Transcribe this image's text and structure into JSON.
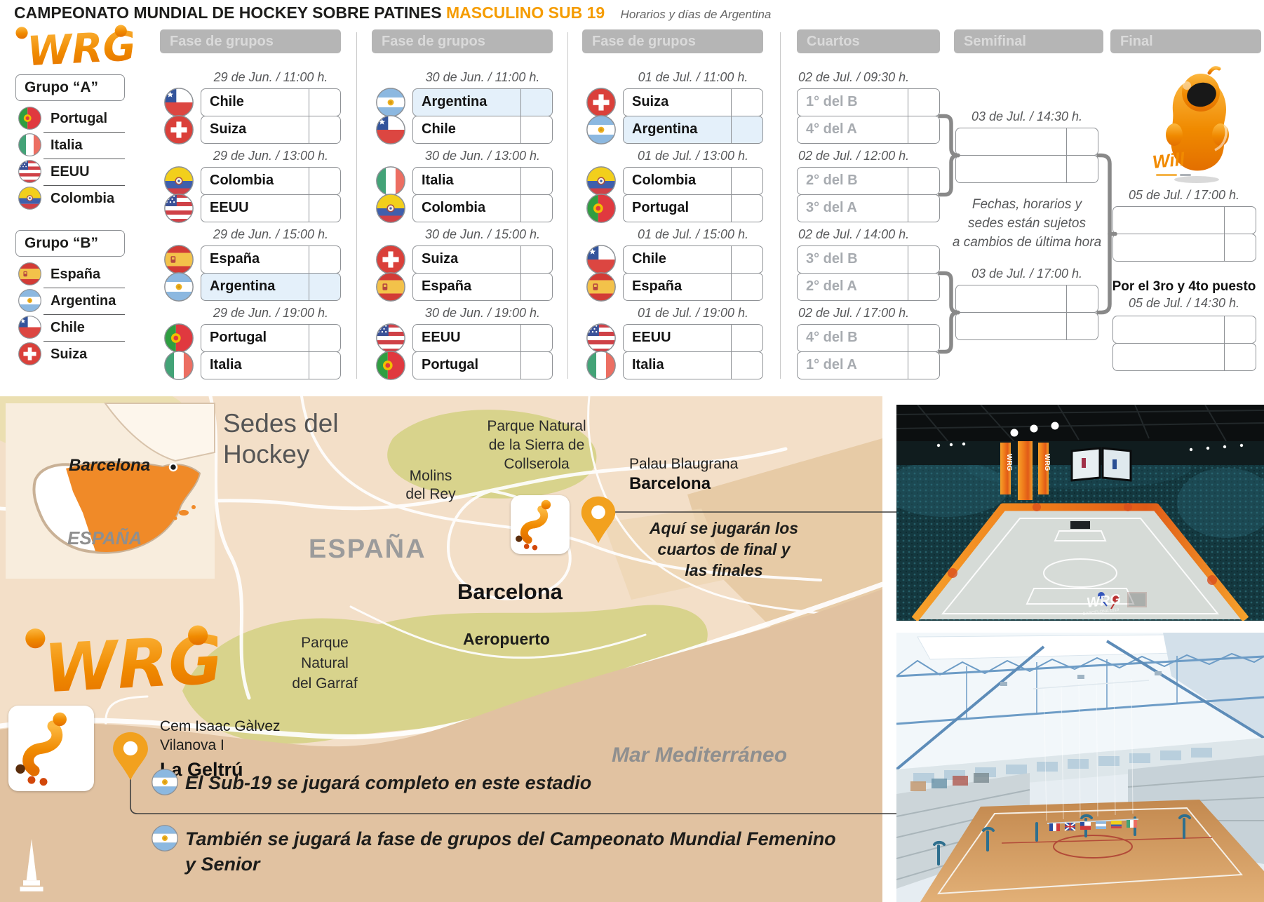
{
  "header": {
    "title": "CAMPEONATO MUNDIAL DE HOCKEY SOBRE PATINES",
    "title_highlight": "MASCULINO SUB 19",
    "subtitle": "Horarios y días de Argentina",
    "logo": "WRG"
  },
  "colors": {
    "accent": "#F59C00",
    "header_bar": "#b5b5b5",
    "highlight_row": "#e4f0fa",
    "bracket_line": "#898989",
    "map_land": "#f3dfc8",
    "map_sea": "#e1c2a1",
    "map_park": "#d8d38c",
    "pin": "#F2A11E",
    "spain_orange": "#F08A28"
  },
  "groups": [
    {
      "label": "Grupo “A”",
      "teams": [
        {
          "name": "Portugal",
          "flag": "portugal"
        },
        {
          "name": "Italia",
          "flag": "italia"
        },
        {
          "name": "EEUU",
          "flag": "eeuu"
        },
        {
          "name": "Colombia",
          "flag": "colombia"
        }
      ]
    },
    {
      "label": "Grupo “B”",
      "teams": [
        {
          "name": "España",
          "flag": "espana"
        },
        {
          "name": "Argentina",
          "flag": "argentina"
        },
        {
          "name": "Chile",
          "flag": "chile"
        },
        {
          "name": "Suiza",
          "flag": "suiza"
        }
      ]
    }
  ],
  "group_stage": {
    "columns": [
      {
        "header": "Fase de grupos",
        "matches": [
          {
            "datetime": "29 de Jun. / 11:00 h.",
            "teams": [
              {
                "name": "Chile",
                "flag": "chile"
              },
              {
                "name": "Suiza",
                "flag": "suiza"
              }
            ]
          },
          {
            "datetime": "29 de Jun. / 13:00 h.",
            "teams": [
              {
                "name": "Colombia",
                "flag": "colombia"
              },
              {
                "name": "EEUU",
                "flag": "eeuu"
              }
            ]
          },
          {
            "datetime": "29 de Jun. / 15:00 h.",
            "teams": [
              {
                "name": "España",
                "flag": "espana"
              },
              {
                "name": "Argentina",
                "flag": "argentina",
                "highlight": true
              }
            ]
          },
          {
            "datetime": "29 de Jun. / 19:00 h.",
            "teams": [
              {
                "name": "Portugal",
                "flag": "portugal"
              },
              {
                "name": "Italia",
                "flag": "italia"
              }
            ]
          }
        ]
      },
      {
        "header": "Fase de grupos",
        "matches": [
          {
            "datetime": "30 de Jun. / 11:00 h.",
            "teams": [
              {
                "name": "Argentina",
                "flag": "argentina",
                "highlight": true
              },
              {
                "name": "Chile",
                "flag": "chile"
              }
            ]
          },
          {
            "datetime": "30 de Jun. / 13:00 h.",
            "teams": [
              {
                "name": "Italia",
                "flag": "italia"
              },
              {
                "name": "Colombia",
                "flag": "colombia"
              }
            ]
          },
          {
            "datetime": "30 de Jun. / 15:00 h.",
            "teams": [
              {
                "name": "Suiza",
                "flag": "suiza"
              },
              {
                "name": "España",
                "flag": "espana"
              }
            ]
          },
          {
            "datetime": "30 de Jun. / 19:00 h.",
            "teams": [
              {
                "name": "EEUU",
                "flag": "eeuu"
              },
              {
                "name": "Portugal",
                "flag": "portugal"
              }
            ]
          }
        ]
      },
      {
        "header": "Fase de grupos",
        "matches": [
          {
            "datetime": "01 de Jul. / 11:00 h.",
            "teams": [
              {
                "name": "Suiza",
                "flag": "suiza"
              },
              {
                "name": "Argentina",
                "flag": "argentina",
                "highlight": true
              }
            ]
          },
          {
            "datetime": "01 de Jul. / 13:00 h.",
            "teams": [
              {
                "name": "Colombia",
                "flag": "colombia"
              },
              {
                "name": "Portugal",
                "flag": "portugal"
              }
            ]
          },
          {
            "datetime": "01 de Jul. / 15:00 h.",
            "teams": [
              {
                "name": "Chile",
                "flag": "chile"
              },
              {
                "name": "España",
                "flag": "espana"
              }
            ]
          },
          {
            "datetime": "01 de Jul. / 19:00 h.",
            "teams": [
              {
                "name": "EEUU",
                "flag": "eeuu"
              },
              {
                "name": "Italia",
                "flag": "italia"
              }
            ]
          }
        ]
      }
    ]
  },
  "knockout": {
    "cuartos": {
      "header": "Cuartos",
      "matches": [
        {
          "datetime": "02 de Jul. / 09:30 h.",
          "slots": [
            "1° del B",
            "4° del A"
          ]
        },
        {
          "datetime": "02 de Jul. / 12:00 h.",
          "slots": [
            "2° del B",
            "3° del A"
          ]
        },
        {
          "datetime": "02 de Jul. / 14:00 h.",
          "slots": [
            "3° del B",
            "2° del A"
          ]
        },
        {
          "datetime": "02 de Jul. / 17:00 h.",
          "slots": [
            "4° del B",
            "1° del A"
          ]
        }
      ]
    },
    "semifinal": {
      "header": "Semifinal",
      "matches": [
        {
          "datetime": "03 de Jul. / 14:30 h."
        },
        {
          "datetime": "03 de Jul. / 17:00 h."
        }
      ],
      "note_lines": [
        "Fechas, horarios y",
        "sedes están sujetos",
        "a cambios de última hora"
      ]
    },
    "final": {
      "header": "Final",
      "match_datetime": "05 de Jul. / 17:00 h.",
      "third_place_title": "Por el 3ro y 4to puesto",
      "third_place_datetime": "05 de Jul. / 14:30 h.",
      "mascot": "Will"
    }
  },
  "map": {
    "inset": {
      "city": "Barcelona",
      "country": "ESPAÑA"
    },
    "title_lines": [
      "Sedes del",
      "Hockey"
    ],
    "labels": {
      "collserola_lines": [
        "Parque Natural",
        "de la Sierra de",
        "Collserola"
      ],
      "molins_lines": [
        "Molins",
        "del Rey"
      ],
      "espana_big": "ESPAÑA",
      "barcelona_big": "Barcelona",
      "aeropuerto": "Aeropuerto",
      "garraf_lines": [
        "Parque",
        "Natural",
        "del Garraf"
      ],
      "mar": "Mar Mediterráneo"
    },
    "venues": [
      {
        "name": "Palau Blaugrana",
        "city": "Barcelona",
        "note_lines": [
          "Aquí se jugarán los",
          "cuartos de final y",
          "las finales"
        ]
      },
      {
        "name_lines": [
          "Cem Isaac Gàlvez",
          "Vilanova I"
        ],
        "city": "La Geltrú"
      }
    ],
    "annotations": [
      {
        "lines": [
          "El Sub-19 se jugará completo en este estadio"
        ]
      },
      {
        "lines": [
          "También se jugará la fase de grupos del Campeonato Mundial Femenino",
          "y Senior"
        ]
      }
    ]
  }
}
